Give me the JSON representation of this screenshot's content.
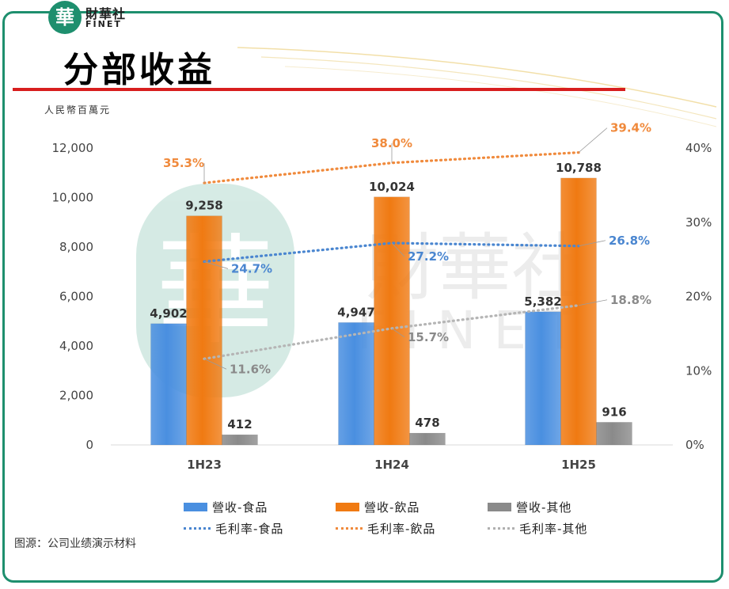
{
  "header": {
    "logo_char": "華",
    "logo_cn": "財華社",
    "logo_en": "FINET",
    "title": "分部收益"
  },
  "unit_label": "人民幣百萬元",
  "source": "图源：公司业绩演示材料",
  "watermark": {
    "cn": "財華社",
    "en": "FINET",
    "char": "華"
  },
  "colors": {
    "frame": "#1e8f6e",
    "food": "#4a8fe0",
    "beverage": "#f07a12",
    "other": "#8a8a8a",
    "red_line": "#d81e1e",
    "margin_food_text": "#4a86d0",
    "margin_bev_text": "#f08a3c",
    "margin_other_text": "#8a8a8a"
  },
  "chart_data": {
    "type": "bar",
    "categories": [
      "1H23",
      "1H24",
      "1H25"
    ],
    "series": [
      {
        "name": "營收-食品",
        "kind": "bar",
        "axis": "left",
        "values": [
          4902,
          4947,
          5382
        ],
        "labels": [
          "4,902",
          "4,947",
          "5,382"
        ]
      },
      {
        "name": "營收-飲品",
        "kind": "bar",
        "axis": "left",
        "values": [
          9258,
          10024,
          10788
        ],
        "labels": [
          "9,258",
          "10,024",
          "10,788"
        ]
      },
      {
        "name": "營收-其他",
        "kind": "bar",
        "axis": "left",
        "values": [
          412,
          478,
          916
        ],
        "labels": [
          "412",
          "478",
          "916"
        ]
      },
      {
        "name": "毛利率-食品",
        "kind": "line",
        "axis": "right",
        "values": [
          24.7,
          27.2,
          26.8
        ],
        "labels": [
          "24.7%",
          "27.2%",
          "26.8%"
        ]
      },
      {
        "name": "毛利率-飲品",
        "kind": "line",
        "axis": "right",
        "values": [
          35.3,
          38.0,
          39.4
        ],
        "labels": [
          "35.3%",
          "38.0%",
          "39.4%"
        ]
      },
      {
        "name": "毛利率-其他",
        "kind": "line",
        "axis": "right",
        "values": [
          11.6,
          15.7,
          18.8
        ],
        "labels": [
          "11.6%",
          "15.7%",
          "18.8%"
        ]
      }
    ],
    "y_left": {
      "min": 0,
      "max": 12000,
      "ticks": [
        "0",
        "2,000",
        "4,000",
        "6,000",
        "8,000",
        "10,000",
        "12,000"
      ]
    },
    "y_right": {
      "min": 0,
      "max": 40,
      "ticks": [
        "0%",
        "10%",
        "20%",
        "30%",
        "40%"
      ]
    },
    "grid": false,
    "legend_position": "bottom"
  }
}
